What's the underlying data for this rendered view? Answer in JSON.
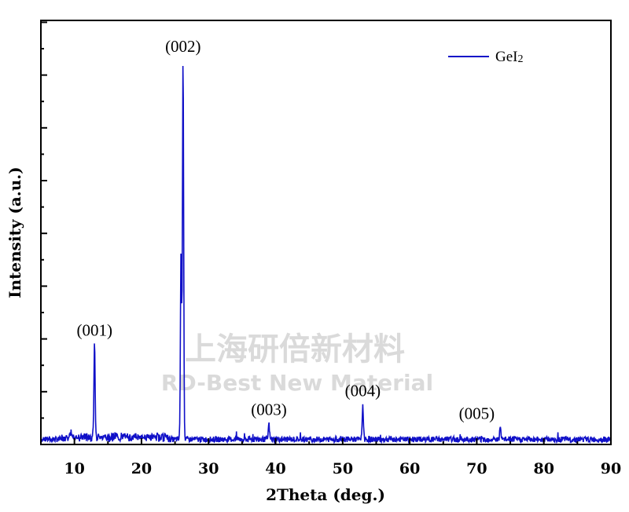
{
  "chart_data": {
    "type": "line",
    "title": "",
    "xlabel": "2Theta (deg.)",
    "ylabel": "Intensity (a.u.)",
    "xlim": [
      5,
      90
    ],
    "ylim": [
      0,
      100
    ],
    "x_ticks": [
      10,
      20,
      30,
      40,
      50,
      60,
      70,
      80,
      90
    ],
    "y_ticks_labeled": false,
    "grid": false,
    "legend": {
      "position": "top-right"
    },
    "series": [
      {
        "name": "GeI2",
        "color": "#1010c8",
        "baseline_noise": 1.5,
        "peaks": [
          {
            "x": 13.0,
            "y": 25.0
          },
          {
            "x": 25.9,
            "y": 50.0
          },
          {
            "x": 26.2,
            "y": 100.0
          },
          {
            "x": 39.0,
            "y": 4.0
          },
          {
            "x": 53.0,
            "y": 9.0
          },
          {
            "x": 73.5,
            "y": 3.0
          }
        ]
      }
    ],
    "annotations": [
      {
        "text": "(001)",
        "x": 13.0,
        "y": 25.0
      },
      {
        "text": "(002)",
        "x": 26.2,
        "y": 100.0
      },
      {
        "text": "(003)",
        "x": 39.0,
        "y": 4.0
      },
      {
        "text": "(004)",
        "x": 53.0,
        "y": 9.0
      },
      {
        "text": "(005)",
        "x": 70.0,
        "y": 3.0
      }
    ]
  },
  "legend_label": {
    "main": "GeI",
    "sub": "2"
  },
  "watermark": {
    "cn": "上海研倍新材料",
    "en": "RD-Best New Material"
  }
}
